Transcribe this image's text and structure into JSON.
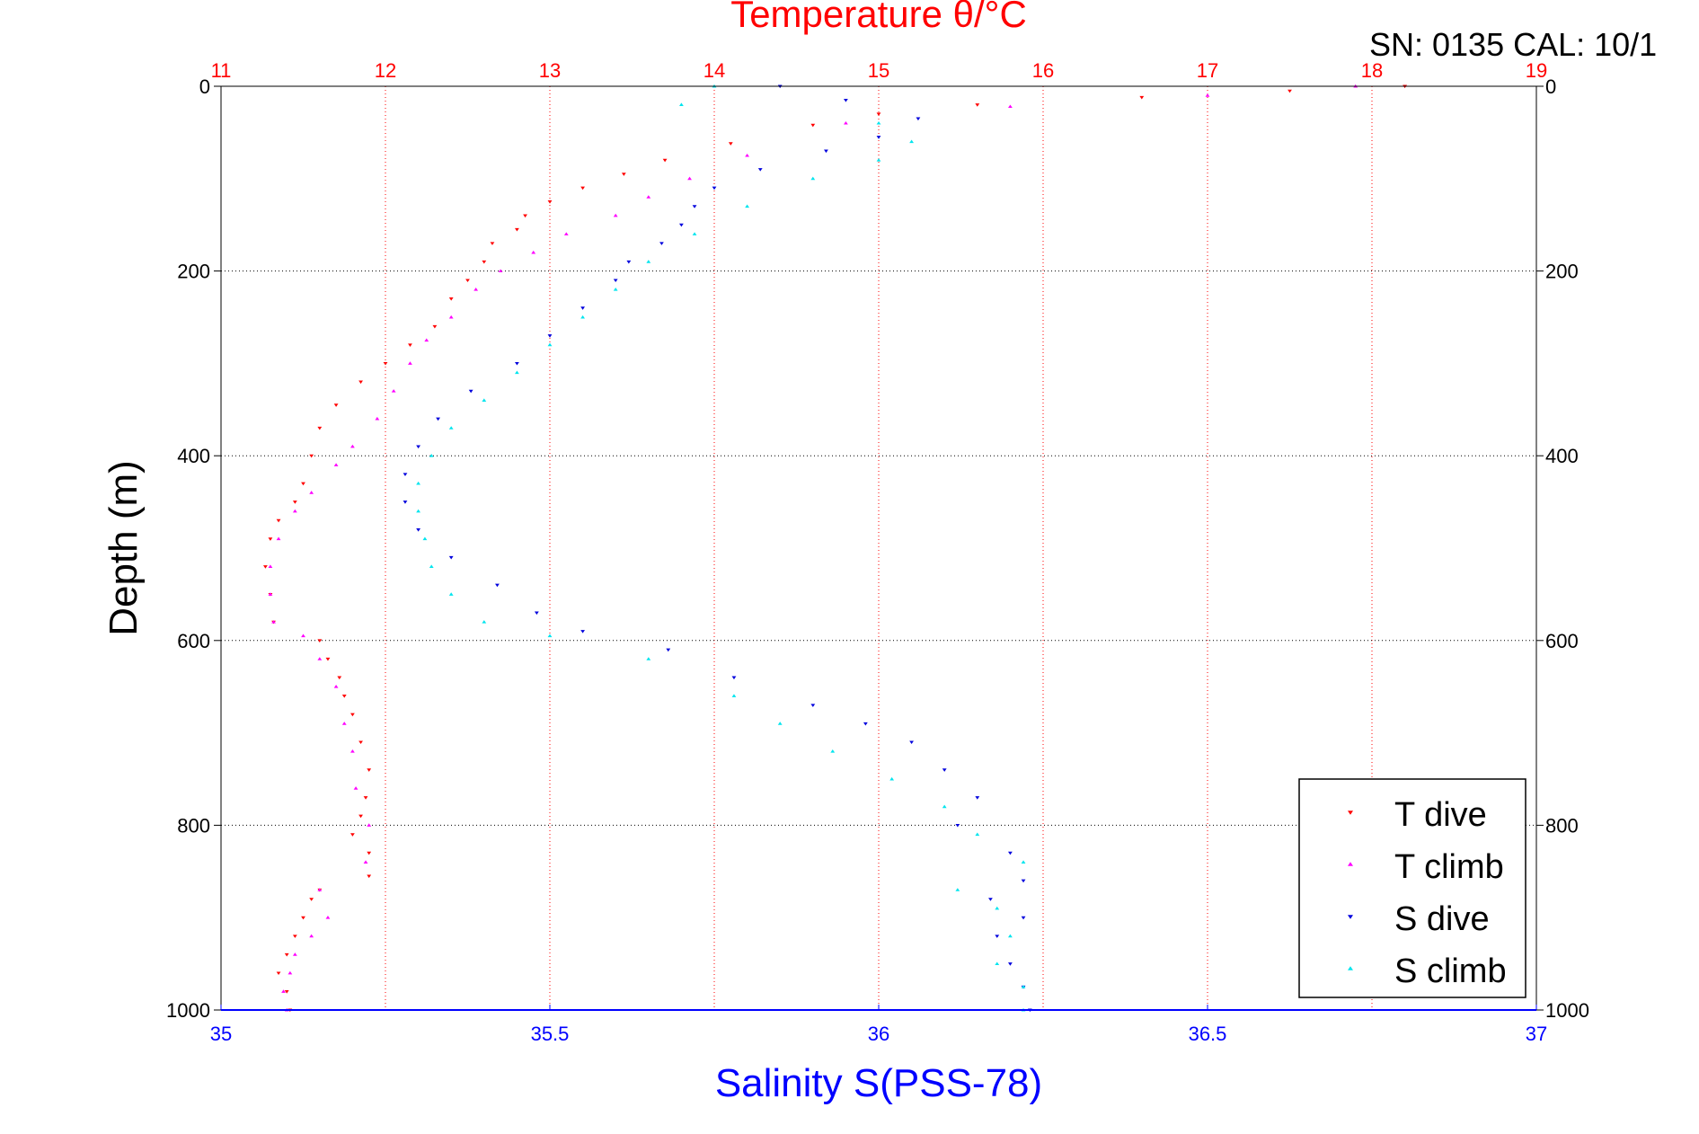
{
  "chart_data": {
    "type": "scatter",
    "title": "Temperature θ/°C",
    "corner_label": "SN: 0135  CAL: 10/1",
    "xlabel_bottom": "Salinity S(PSS-78)",
    "ylabel": "Depth (m)",
    "x_top_label": "Temperature θ/°C",
    "x_top_range": [
      11,
      19
    ],
    "x_top_ticks": [
      "11",
      "12",
      "13",
      "14",
      "15",
      "16",
      "17",
      "18",
      "19"
    ],
    "x_bottom_range": [
      35,
      37
    ],
    "x_bottom_ticks": [
      "35",
      "35.5",
      "36",
      "36.5",
      "37"
    ],
    "y_range": [
      0,
      1000
    ],
    "y_reversed": true,
    "y_ticks": [
      "0",
      "200",
      "400",
      "600",
      "800",
      "1000"
    ],
    "grid": true,
    "legend_position": "bottom-right",
    "colors": {
      "t_dive": "#ff0000",
      "t_climb": "#ff00ff",
      "s_dive": "#0000dd",
      "s_climb": "#00e5ee",
      "temp_axis": "#ff0000",
      "sal_axis": "#0000ff"
    },
    "series": [
      {
        "name": "T dive",
        "axis": "temperature",
        "marker": "triangle-down",
        "points": [
          [
            18.2,
            0
          ],
          [
            17.5,
            5
          ],
          [
            16.6,
            12
          ],
          [
            15.6,
            20
          ],
          [
            15.0,
            30
          ],
          [
            14.6,
            42
          ],
          [
            14.1,
            62
          ],
          [
            13.7,
            80
          ],
          [
            13.45,
            95
          ],
          [
            13.2,
            110
          ],
          [
            13.0,
            125
          ],
          [
            12.85,
            140
          ],
          [
            12.8,
            155
          ],
          [
            12.65,
            170
          ],
          [
            12.6,
            190
          ],
          [
            12.5,
            210
          ],
          [
            12.4,
            230
          ],
          [
            12.3,
            260
          ],
          [
            12.15,
            280
          ],
          [
            12.0,
            300
          ],
          [
            11.85,
            320
          ],
          [
            11.7,
            345
          ],
          [
            11.6,
            370
          ],
          [
            11.55,
            400
          ],
          [
            11.5,
            430
          ],
          [
            11.45,
            450
          ],
          [
            11.35,
            470
          ],
          [
            11.3,
            490
          ],
          [
            11.27,
            520
          ],
          [
            11.3,
            550
          ],
          [
            11.32,
            580
          ],
          [
            11.6,
            600
          ],
          [
            11.65,
            620
          ],
          [
            11.72,
            640
          ],
          [
            11.75,
            660
          ],
          [
            11.8,
            680
          ],
          [
            11.85,
            710
          ],
          [
            11.9,
            740
          ],
          [
            11.88,
            770
          ],
          [
            11.85,
            790
          ],
          [
            11.8,
            810
          ],
          [
            11.9,
            830
          ],
          [
            11.9,
            855
          ],
          [
            11.6,
            870
          ],
          [
            11.55,
            880
          ],
          [
            11.5,
            900
          ],
          [
            11.45,
            920
          ],
          [
            11.4,
            940
          ],
          [
            11.35,
            960
          ],
          [
            11.4,
            980
          ],
          [
            11.42,
            1000
          ]
        ]
      },
      {
        "name": "T climb",
        "axis": "temperature",
        "marker": "triangle-up",
        "points": [
          [
            17.9,
            0
          ],
          [
            17.0,
            10
          ],
          [
            15.8,
            22
          ],
          [
            14.8,
            40
          ],
          [
            14.2,
            75
          ],
          [
            13.85,
            100
          ],
          [
            13.6,
            120
          ],
          [
            13.4,
            140
          ],
          [
            13.1,
            160
          ],
          [
            12.9,
            180
          ],
          [
            12.7,
            200
          ],
          [
            12.55,
            220
          ],
          [
            12.4,
            250
          ],
          [
            12.25,
            275
          ],
          [
            12.15,
            300
          ],
          [
            12.05,
            330
          ],
          [
            11.95,
            360
          ],
          [
            11.8,
            390
          ],
          [
            11.7,
            410
          ],
          [
            11.55,
            440
          ],
          [
            11.45,
            460
          ],
          [
            11.35,
            490
          ],
          [
            11.3,
            520
          ],
          [
            11.3,
            550
          ],
          [
            11.32,
            580
          ],
          [
            11.5,
            595
          ],
          [
            11.6,
            620
          ],
          [
            11.7,
            650
          ],
          [
            11.75,
            690
          ],
          [
            11.8,
            720
          ],
          [
            11.82,
            760
          ],
          [
            11.9,
            800
          ],
          [
            11.88,
            840
          ],
          [
            11.6,
            870
          ],
          [
            11.65,
            900
          ],
          [
            11.55,
            920
          ],
          [
            11.45,
            940
          ],
          [
            11.42,
            960
          ],
          [
            11.38,
            980
          ],
          [
            11.4,
            1000
          ]
        ]
      },
      {
        "name": "S dive",
        "axis": "salinity",
        "marker": "triangle-down",
        "points": [
          [
            35.85,
            0
          ],
          [
            35.95,
            15
          ],
          [
            36.06,
            35
          ],
          [
            36.0,
            55
          ],
          [
            35.92,
            70
          ],
          [
            35.82,
            90
          ],
          [
            35.75,
            110
          ],
          [
            35.72,
            130
          ],
          [
            35.7,
            150
          ],
          [
            35.67,
            170
          ],
          [
            35.62,
            190
          ],
          [
            35.6,
            210
          ],
          [
            35.55,
            240
          ],
          [
            35.5,
            270
          ],
          [
            35.45,
            300
          ],
          [
            35.38,
            330
          ],
          [
            35.33,
            360
          ],
          [
            35.3,
            390
          ],
          [
            35.28,
            420
          ],
          [
            35.28,
            450
          ],
          [
            35.3,
            480
          ],
          [
            35.35,
            510
          ],
          [
            35.42,
            540
          ],
          [
            35.48,
            570
          ],
          [
            35.55,
            590
          ],
          [
            35.68,
            610
          ],
          [
            35.78,
            640
          ],
          [
            35.9,
            670
          ],
          [
            35.98,
            690
          ],
          [
            36.05,
            710
          ],
          [
            36.1,
            740
          ],
          [
            36.15,
            770
          ],
          [
            36.12,
            800
          ],
          [
            36.2,
            830
          ],
          [
            36.22,
            860
          ],
          [
            36.17,
            880
          ],
          [
            36.22,
            900
          ],
          [
            36.18,
            920
          ],
          [
            36.2,
            950
          ],
          [
            36.22,
            975
          ],
          [
            36.23,
            1000
          ]
        ]
      },
      {
        "name": "S climb",
        "axis": "salinity",
        "marker": "triangle-up",
        "points": [
          [
            35.75,
            0
          ],
          [
            35.7,
            20
          ],
          [
            36.0,
            40
          ],
          [
            36.05,
            60
          ],
          [
            36.0,
            80
          ],
          [
            35.9,
            100
          ],
          [
            35.8,
            130
          ],
          [
            35.72,
            160
          ],
          [
            35.65,
            190
          ],
          [
            35.6,
            220
          ],
          [
            35.55,
            250
          ],
          [
            35.5,
            280
          ],
          [
            35.45,
            310
          ],
          [
            35.4,
            340
          ],
          [
            35.35,
            370
          ],
          [
            35.32,
            400
          ],
          [
            35.3,
            430
          ],
          [
            35.3,
            460
          ],
          [
            35.31,
            490
          ],
          [
            35.32,
            520
          ],
          [
            35.35,
            550
          ],
          [
            35.4,
            580
          ],
          [
            35.5,
            595
          ],
          [
            35.65,
            620
          ],
          [
            35.78,
            660
          ],
          [
            35.85,
            690
          ],
          [
            35.93,
            720
          ],
          [
            36.02,
            750
          ],
          [
            36.1,
            780
          ],
          [
            36.15,
            810
          ],
          [
            36.22,
            840
          ],
          [
            36.12,
            870
          ],
          [
            36.18,
            890
          ],
          [
            36.2,
            920
          ],
          [
            36.18,
            950
          ],
          [
            36.22,
            975
          ],
          [
            36.22,
            1000
          ]
        ]
      }
    ]
  }
}
